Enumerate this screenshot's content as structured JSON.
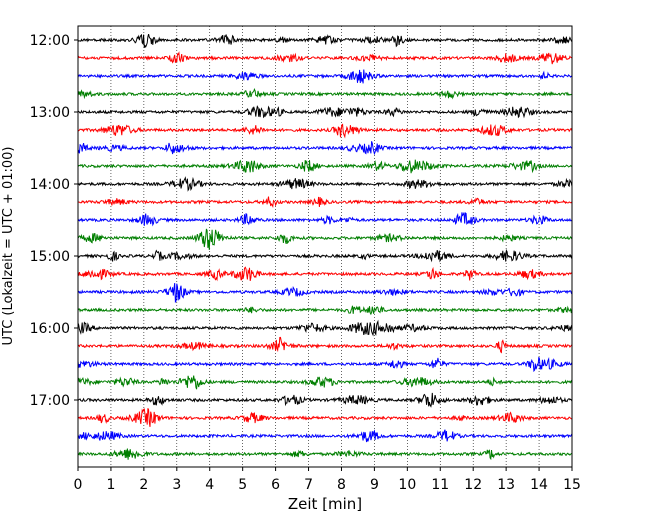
{
  "chart_data": {
    "type": "line",
    "title": "",
    "xlabel": "Zeit  [min]",
    "ylabel": "UTC (Lokalzeit = UTC + 01:00)",
    "xlim": [
      0,
      15
    ],
    "x_ticks": [
      "0",
      "1",
      "2",
      "3",
      "4",
      "5",
      "6",
      "7",
      "8",
      "9",
      "10",
      "11",
      "12",
      "13",
      "14",
      "15"
    ],
    "y_tick_labels": [
      "12:00",
      "13:00",
      "14:00",
      "15:00",
      "16:00",
      "17:00"
    ],
    "grid": "vertical dotted at each minute",
    "trace_colors": [
      "#000000",
      "#ff0000",
      "#0000ff",
      "#007f00"
    ],
    "traces": [
      {
        "start": "12:00"
      },
      {
        "start": "12:15"
      },
      {
        "start": "12:30"
      },
      {
        "start": "12:45"
      },
      {
        "start": "13:00"
      },
      {
        "start": "13:15"
      },
      {
        "start": "13:30"
      },
      {
        "start": "13:45"
      },
      {
        "start": "14:00"
      },
      {
        "start": "14:15"
      },
      {
        "start": "14:30"
      },
      {
        "start": "14:45"
      },
      {
        "start": "15:00"
      },
      {
        "start": "15:15"
      },
      {
        "start": "15:30"
      },
      {
        "start": "15:45"
      },
      {
        "start": "16:00"
      },
      {
        "start": "16:15"
      },
      {
        "start": "16:30"
      },
      {
        "start": "16:45"
      },
      {
        "start": "17:00"
      },
      {
        "start": "17:15"
      },
      {
        "start": "17:30"
      },
      {
        "start": "17:45"
      }
    ]
  }
}
